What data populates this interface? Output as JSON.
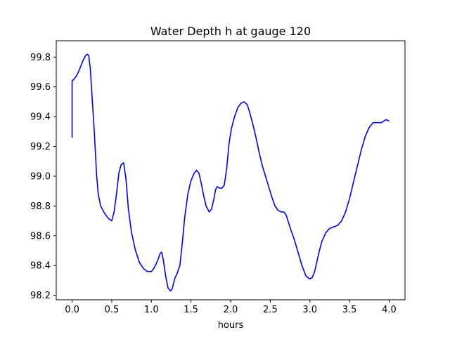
{
  "chart_data": {
    "type": "line",
    "title": "Water Depth h at gauge 120",
    "xlabel": "hours",
    "ylabel": "",
    "xlim": [
      -0.2,
      4.2
    ],
    "ylim": [
      98.17,
      99.91
    ],
    "xticks": [
      0.0,
      0.5,
      1.0,
      1.5,
      2.0,
      2.5,
      3.0,
      3.5,
      4.0
    ],
    "xtick_labels": [
      "0.0",
      "0.5",
      "1.0",
      "1.5",
      "2.0",
      "2.5",
      "3.0",
      "3.5",
      "4.0"
    ],
    "yticks": [
      98.2,
      98.4,
      98.6,
      98.8,
      99.0,
      99.2,
      99.4,
      99.6,
      99.8
    ],
    "ytick_labels": [
      "98.2",
      "98.4",
      "98.6",
      "98.8",
      "99.0",
      "99.2",
      "99.4",
      "99.6",
      "99.8"
    ],
    "grid": false,
    "series": [
      {
        "color": "#0000ff",
        "x": [
          0.0,
          0.0,
          0.02,
          0.05,
          0.08,
          0.11,
          0.14,
          0.17,
          0.19,
          0.21,
          0.23,
          0.25,
          0.28,
          0.31,
          0.33,
          0.36,
          0.4,
          0.45,
          0.5,
          0.53,
          0.56,
          0.59,
          0.62,
          0.65,
          0.68,
          0.71,
          0.75,
          0.8,
          0.85,
          0.9,
          0.95,
          1.0,
          1.03,
          1.06,
          1.09,
          1.11,
          1.13,
          1.15,
          1.18,
          1.21,
          1.24,
          1.26,
          1.28,
          1.3,
          1.32,
          1.36,
          1.39,
          1.42,
          1.46,
          1.5,
          1.54,
          1.57,
          1.6,
          1.63,
          1.66,
          1.69,
          1.73,
          1.76,
          1.79,
          1.81,
          1.83,
          1.86,
          1.89,
          1.92,
          1.95,
          1.98,
          2.01,
          2.05,
          2.09,
          2.13,
          2.17,
          2.21,
          2.24,
          2.28,
          2.32,
          2.36,
          2.4,
          2.44,
          2.48,
          2.52,
          2.56,
          2.6,
          2.64,
          2.67,
          2.7,
          2.73,
          2.76,
          2.8,
          2.85,
          2.9,
          2.95,
          3.0,
          3.03,
          3.06,
          3.09,
          3.12,
          3.15,
          3.2,
          3.25,
          3.3,
          3.35,
          3.4,
          3.45,
          3.5,
          3.55,
          3.6,
          3.65,
          3.7,
          3.75,
          3.8,
          3.85,
          3.9,
          3.93,
          3.96,
          4.0
        ],
        "y": [
          99.26,
          99.64,
          99.65,
          99.67,
          99.7,
          99.74,
          99.78,
          99.81,
          99.82,
          99.81,
          99.72,
          99.55,
          99.3,
          99.0,
          98.88,
          98.8,
          98.76,
          98.72,
          98.7,
          98.76,
          98.88,
          99.02,
          99.08,
          99.09,
          98.98,
          98.78,
          98.62,
          98.5,
          98.42,
          98.38,
          98.36,
          98.36,
          98.38,
          98.41,
          98.45,
          98.48,
          98.49,
          98.44,
          98.33,
          98.25,
          98.23,
          98.24,
          98.28,
          98.32,
          98.34,
          98.4,
          98.55,
          98.72,
          98.88,
          98.97,
          99.02,
          99.04,
          99.02,
          98.95,
          98.87,
          98.8,
          98.76,
          98.78,
          98.85,
          98.91,
          98.93,
          98.92,
          98.92,
          98.94,
          99.05,
          99.22,
          99.32,
          99.4,
          99.46,
          99.49,
          99.5,
          99.48,
          99.43,
          99.35,
          99.26,
          99.16,
          99.07,
          99.0,
          98.93,
          98.86,
          98.8,
          98.77,
          98.76,
          98.76,
          98.74,
          98.69,
          98.64,
          98.58,
          98.49,
          98.4,
          98.33,
          98.31,
          98.32,
          98.36,
          98.43,
          98.5,
          98.56,
          98.62,
          98.65,
          98.66,
          98.67,
          98.7,
          98.76,
          98.85,
          98.96,
          99.07,
          99.18,
          99.27,
          99.33,
          99.36,
          99.36,
          99.36,
          99.37,
          99.38,
          99.37
        ]
      }
    ]
  }
}
